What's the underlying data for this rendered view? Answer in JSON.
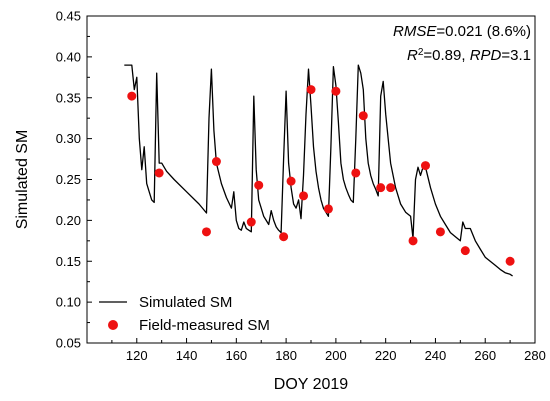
{
  "chart_data": {
    "type": "line",
    "xlabel": "DOY 2019",
    "ylabel": "Simulated SM",
    "xlim": [
      100,
      280
    ],
    "ylim": [
      0.05,
      0.45
    ],
    "xticks": [
      120,
      140,
      160,
      180,
      200,
      220,
      240,
      260,
      280
    ],
    "xtick_labels": [
      "120",
      "140",
      "160",
      "180",
      "200",
      "220",
      "240",
      "260",
      "280"
    ],
    "yticks": [
      0.05,
      0.1,
      0.15,
      0.2,
      0.25,
      0.3,
      0.35,
      0.4,
      0.45
    ],
    "ytick_labels": [
      "0.05",
      "0.10",
      "0.15",
      "0.20",
      "0.25",
      "0.30",
      "0.35",
      "0.40",
      "0.45"
    ],
    "grid": false,
    "legend_position": "bottom-left",
    "annotation": {
      "rmse_label": "RMSE",
      "rmse_value": "=0.021 (8.6%)",
      "r2_label": "R",
      "r2_sup": "2",
      "r2_value": "=0.89, ",
      "rpd_label": "RPD",
      "rpd_value": "=3.1"
    },
    "series": [
      {
        "name": "Simulated SM",
        "kind": "line",
        "color": "#000000",
        "x": [
          115,
          118,
          119,
          120,
          121,
          122,
          123,
          124,
          125,
          126,
          127,
          128,
          129,
          130,
          132,
          135,
          140,
          145,
          148,
          149,
          150,
          151,
          152,
          154,
          156,
          158,
          159,
          160,
          161,
          162,
          163,
          164,
          165,
          166,
          167,
          168,
          169,
          170,
          171,
          172,
          173,
          174,
          175,
          176,
          177,
          178,
          179,
          180,
          181,
          182,
          183,
          184,
          185,
          186,
          187,
          188,
          189,
          190,
          191,
          192,
          193,
          194,
          195,
          196,
          197,
          198,
          199,
          200,
          201,
          202,
          203,
          204,
          205,
          206,
          207,
          208,
          209,
          210,
          211,
          212,
          213,
          214,
          215,
          216,
          217,
          218,
          219,
          220,
          222,
          224,
          226,
          228,
          230,
          231,
          232,
          233,
          234,
          235,
          236,
          238,
          240,
          242,
          244,
          246,
          248,
          250,
          251,
          252,
          254,
          256,
          258,
          260,
          262,
          264,
          266,
          268,
          270,
          271
        ],
        "y": [
          0.39,
          0.39,
          0.36,
          0.375,
          0.3,
          0.262,
          0.29,
          0.245,
          0.235,
          0.225,
          0.222,
          0.38,
          0.27,
          0.27,
          0.26,
          0.25,
          0.235,
          0.22,
          0.209,
          0.325,
          0.385,
          0.31,
          0.27,
          0.245,
          0.228,
          0.215,
          0.235,
          0.2,
          0.19,
          0.188,
          0.198,
          0.19,
          0.188,
          0.186,
          0.352,
          0.262,
          0.225,
          0.215,
          0.205,
          0.2,
          0.195,
          0.212,
          0.2,
          0.192,
          0.188,
          0.185,
          0.275,
          0.358,
          0.27,
          0.24,
          0.22,
          0.215,
          0.225,
          0.202,
          0.255,
          0.33,
          0.385,
          0.34,
          0.29,
          0.26,
          0.24,
          0.225,
          0.215,
          0.21,
          0.205,
          0.29,
          0.388,
          0.365,
          0.32,
          0.27,
          0.25,
          0.24,
          0.232,
          0.225,
          0.222,
          0.3,
          0.39,
          0.38,
          0.36,
          0.3,
          0.27,
          0.255,
          0.245,
          0.238,
          0.23,
          0.352,
          0.37,
          0.33,
          0.27,
          0.24,
          0.22,
          0.21,
          0.205,
          0.178,
          0.25,
          0.265,
          0.255,
          0.265,
          0.265,
          0.24,
          0.22,
          0.205,
          0.195,
          0.185,
          0.18,
          0.175,
          0.198,
          0.19,
          0.19,
          0.175,
          0.165,
          0.155,
          0.15,
          0.145,
          0.14,
          0.136,
          0.134,
          0.132
        ]
      },
      {
        "name": "Field-measured SM",
        "kind": "scatter",
        "color": "#ee1111",
        "x": [
          118,
          129,
          148,
          152,
          166,
          169,
          179,
          182,
          187,
          190,
          197,
          200,
          208,
          211,
          218,
          222,
          231,
          236,
          242,
          252,
          270
        ],
        "y": [
          0.352,
          0.258,
          0.186,
          0.272,
          0.198,
          0.243,
          0.18,
          0.248,
          0.23,
          0.36,
          0.214,
          0.358,
          0.258,
          0.328,
          0.24,
          0.24,
          0.175,
          0.267,
          0.186,
          0.163,
          0.15
        ]
      }
    ]
  }
}
